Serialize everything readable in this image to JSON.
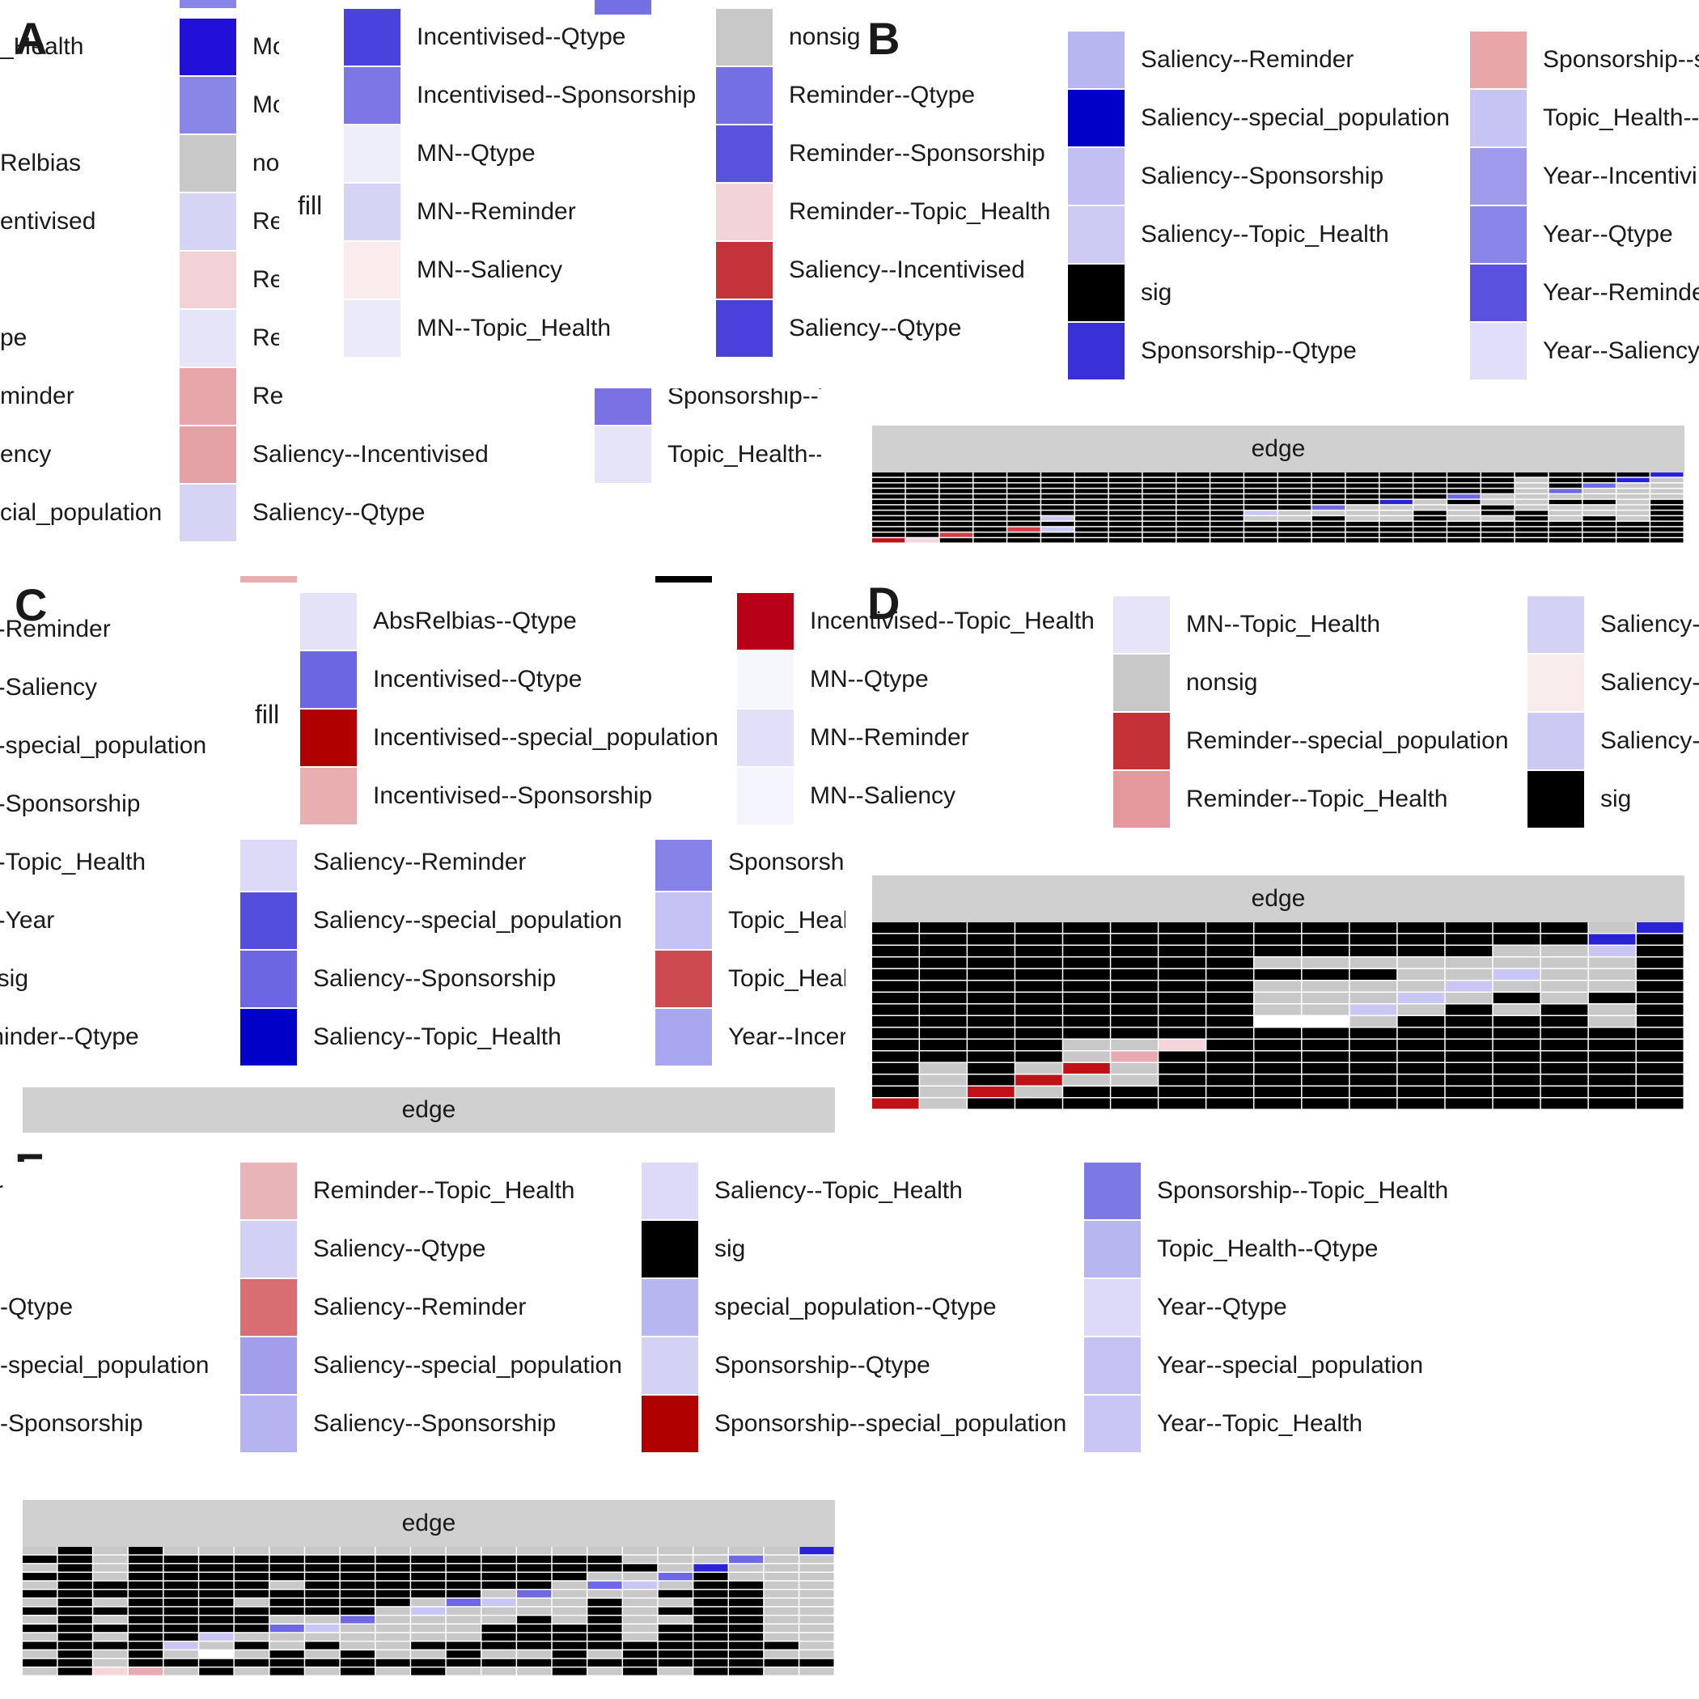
{
  "panels": [
    {
      "letter": "A",
      "fill_title": "fill"
    },
    {
      "letter": "B",
      "strip_label": "edge"
    },
    {
      "letter": "C",
      "fill_title": "fill",
      "strip_label": "edge"
    },
    {
      "letter": "D",
      "strip_label": "edge"
    },
    {
      "letter": "E",
      "strip_label": "edge"
    }
  ],
  "colors": {
    "sig": "#000000",
    "nonsig": "#c8c8c8",
    "strip": "#d0d0d0",
    "blue_strong": "#0000c8",
    "red_strong": "#b40000"
  },
  "legend_a_background": [
    {
      "label": "Topic_Health",
      "visible_text": "_Health",
      "color": "#ffffff"
    },
    {
      "label": "Relbias",
      "visible_text": "Relbias",
      "color": "#ffffff"
    },
    {
      "label": "Incentivised",
      "visible_text": "entivised",
      "color": "#ffffff"
    },
    {
      "label": "Qtype",
      "visible_text": "pe",
      "color": "#ffffff"
    },
    {
      "label": "Reminder",
      "visible_text": "minder",
      "color": "#ffffff"
    },
    {
      "label": "Saliency",
      "visible_text": "ency",
      "color": "#ffffff"
    },
    {
      "label": "special_population",
      "visible_text": "cial_population",
      "color": "#ffffff"
    },
    {
      "label": "Mo",
      "color": "#2010d8"
    },
    {
      "label": "Mo",
      "color": "#8a86e8"
    },
    {
      "label": "nor",
      "color": "#c8c8c8"
    },
    {
      "label": "Re",
      "color": "#d6d4f4"
    },
    {
      "label": "Re",
      "color": "#f2d2d6"
    },
    {
      "label": "Re",
      "color": "#e6e4f8"
    },
    {
      "label": "Re",
      "color": "#e6a6aa"
    },
    {
      "label": "Saliency--Incentivised",
      "color": "#e4a2a6"
    },
    {
      "label": "Saliency--Qtype",
      "color": "#d6d4f4"
    },
    {
      "label": "Sponsorship--Top",
      "color": "#7a72e4"
    },
    {
      "label": "Topic_Health--Qt",
      "color": "#e6e4f8"
    }
  ],
  "legend_a": [
    {
      "label": "Incentivised--Qtype",
      "color": "#4a42dc"
    },
    {
      "label": "Incentivised--Sponsorship",
      "color": "#7c76e6"
    },
    {
      "label": "MN--Qtype",
      "color": "#eeedfa"
    },
    {
      "label": "MN--Reminder",
      "color": "#d6d4f4"
    },
    {
      "label": "MN--Saliency",
      "color": "#faeced"
    },
    {
      "label": "MN--Topic_Health",
      "color": "#ebeaf9"
    },
    {
      "label": "nonsig",
      "color": "#c8c8c8"
    },
    {
      "label": "Reminder--Qtype",
      "color": "#7470e4"
    },
    {
      "label": "Reminder--Sponsorship",
      "color": "#5852de"
    },
    {
      "label": "Reminder--Topic_Health",
      "color": "#f2d4d8"
    },
    {
      "label": "Saliency--Incentivised",
      "color": "#c4323a"
    },
    {
      "label": "Saliency--Qtype",
      "color": "#4a40dc"
    }
  ],
  "legend_b": [
    {
      "label": "Saliency--Reminder",
      "color": "#b8b6f0"
    },
    {
      "label": "Saliency--special_population",
      "color": "#0000c8"
    },
    {
      "label": "Saliency--Sponsorship",
      "color": "#c2c0f2"
    },
    {
      "label": "Saliency--Topic_Health",
      "color": "#cdcbf4"
    },
    {
      "label": "sig",
      "color": "#000000"
    },
    {
      "label": "Sponsorship--Qtype",
      "color": "#3a30d8"
    },
    {
      "label": "Sponsorship--special_population",
      "visible_text": "Sponsorship--s",
      "color": "#e8a6a8"
    },
    {
      "label": "Topic_Health--",
      "color": "#c6c4f2"
    },
    {
      "label": "Year--Incentivi",
      "color": "#9e9aec"
    },
    {
      "label": "Year--Qtype",
      "color": "#8884e8"
    },
    {
      "label": "Year--Reminder",
      "visible_text": "Year--Reminde",
      "color": "#5a52de"
    },
    {
      "label": "Year--Saliency",
      "color": "#e0def8"
    }
  ],
  "legend_c_background": [
    {
      "label": "l--Reminder",
      "color": "#ffffff"
    },
    {
      "label": "l--Saliency",
      "color": "#ffffff"
    },
    {
      "label": "l--special_population",
      "color": "#ffffff"
    },
    {
      "label": "l--Sponsorship",
      "color": "#ffffff"
    },
    {
      "label": "l--Topic_Health",
      "color": "#ffffff"
    },
    {
      "label": "l--Year",
      "color": "#ffffff"
    },
    {
      "label": "nsig",
      "color": "#ffffff"
    },
    {
      "label": "minder--Qtype",
      "color": "#ffffff"
    },
    {
      "label": "Saliency--Reminder",
      "color": "#dcdaf6"
    },
    {
      "label": "Saliency--special_population",
      "color": "#544ede"
    },
    {
      "label": "Saliency--Sponsorship",
      "color": "#6c66e2"
    },
    {
      "label": "Saliency--Topic_Health",
      "color": "#0000c8"
    },
    {
      "label": "Sponsorsh",
      "color": "#8682e8"
    },
    {
      "label": "Topic_Heal",
      "color": "#c4c2f2"
    },
    {
      "label": "Topic_Heal",
      "color": "#cc4a50"
    },
    {
      "label": "Year--Incer",
      "color": "#a8a6ee"
    }
  ],
  "legend_c": [
    {
      "label": "AbsRelbias--Qtype",
      "color": "#e4e2f8"
    },
    {
      "label": "Incentivised--Qtype",
      "color": "#6c66e2"
    },
    {
      "label": "Incentivised--special_population",
      "color": "#b00000"
    },
    {
      "label": "Incentivised--Sponsorship",
      "color": "#e8aeb0"
    },
    {
      "label": "Incentivised--Topic_Health",
      "color": "#b80018"
    },
    {
      "label": "MN--Qtype",
      "color": "#f6f6fd"
    },
    {
      "label": "MN--Reminder",
      "color": "#e2e0f8"
    },
    {
      "label": "MN--Saliency",
      "color": "#f4f4fd"
    }
  ],
  "legend_d": [
    {
      "label": "MN--Topic_Health",
      "color": "#e6e4f9"
    },
    {
      "label": "nonsig",
      "color": "#c8c8c8"
    },
    {
      "label": "Reminder--special_population",
      "color": "#c43238"
    },
    {
      "label": "Reminder--Topic_Health",
      "color": "#e4989c"
    },
    {
      "label": "Saliency-",
      "color": "#d4d2f4"
    },
    {
      "label": "Saliency-",
      "color": "#f8ecec"
    },
    {
      "label": "Saliency-",
      "color": "#cccaf4"
    },
    {
      "label": "sig",
      "color": "#000000"
    }
  ],
  "legend_e_background": [
    {
      "label": "r",
      "color": "#ffffff"
    },
    {
      "label": "r--Qtype",
      "color": "#ffffff"
    },
    {
      "label": "r--special_population",
      "color": "#ffffff"
    },
    {
      "label": "r--Sponsorship",
      "color": "#ffffff"
    }
  ],
  "legend_e": [
    {
      "label": "Reminder--Topic_Health",
      "color": "#e8b4b8"
    },
    {
      "label": "Saliency--Qtype",
      "color": "#d2d0f4"
    },
    {
      "label": "Saliency--Reminder",
      "color": "#d86e72"
    },
    {
      "label": "Saliency--special_population",
      "color": "#a29eec"
    },
    {
      "label": "Saliency--Sponsorship",
      "color": "#b6b4f0"
    },
    {
      "label": "Saliency--Topic_Health",
      "color": "#dcdaf8"
    },
    {
      "label": "sig",
      "color": "#000000"
    },
    {
      "label": "special_population--Qtype",
      "color": "#b8b6f0"
    },
    {
      "label": "Sponsorship--Qtype",
      "color": "#d4d2f4"
    },
    {
      "label": "Sponsorship--special_population",
      "color": "#b00000"
    },
    {
      "label": "Sponsorship--Topic_Health",
      "color": "#7c78e6"
    },
    {
      "label": "Topic_Health--Qtype",
      "color": "#b8b6f0"
    },
    {
      "label": "Year--Qtype",
      "color": "#dcdaf8"
    },
    {
      "label": "Year--special_population",
      "color": "#c4c2f2"
    },
    {
      "label": "Year--Topic_Health",
      "color": "#c8c6f4"
    }
  ],
  "chart_data": [
    {
      "type": "heatmap",
      "panel": "B",
      "title": "edge",
      "columns": 24,
      "rows": 13,
      "cells": [
        "SSSSSSSSSSSSSSSSSSSSSSSB",
        "SSSSSSSSSSSSSSSSSSSNSSBN",
        "SSSSSSSSSSSSSSSSSSSNSbNN",
        "SSSSSSSSSSSSSSSSSSSNbNNN",
        "SSSSSSSSSSSSSSSSSbNNNNNN",
        "SSSSSSSSSSSSSSSBNSNNSSNS",
        "SSSSSSSSSSSSSbNNNNSNNNNS",
        "SSSSSSSSSSSlNNNNSNSSNNNS",
        "SSSSSlSSSSSNNSNNSNNSNSNS",
        "SSSSSSSSSSSSSSSSSSSSSSSS",
        "SSSSrlSSSSSSSSSSSSSSSSSS",
        "SSrSSSSSSSSSSSSSSSSSSSSS",
        "RpSSSSSSSSSSSSSSSSSSSSSS"
      ],
      "legend": "legend_a + legend_b"
    },
    {
      "type": "heatmap",
      "panel": "D",
      "title": "edge",
      "columns": 17,
      "rows": 16,
      "cells": [
        "SSSSSSSSSSSSSSSNB",
        "SSSSSSSSSSSSSSSBS",
        "SSSSSSSSSSSSSNNlS",
        "SSSSSSSSNNNNNNNNS",
        "SSSSSSSSSSSNNlNNS",
        "SSSSSSSSNNNNlNNNS",
        "SSSSSSSSNNNlNSNSS",
        "SSSSSSSSNNlNSNSNS",
        "SSSSSSSSWWNSSSSNS",
        "SSSSSSSSSSSSSSSSS",
        "SSSSNNpSSSSSSSSSS",
        "SSSSNPSSSSSSSSSSS",
        "SNSNRNSSSSSSSSSSS",
        "SNSRNNSSSSSSSSSSS",
        "SNRNSSSSSSSSSSSSS",
        "RNSSSSSSSSSSSSSSS"
      ],
      "legend": "legend_c + legend_d"
    },
    {
      "type": "heatmap",
      "panel": "E",
      "title": "edge",
      "columns": 23,
      "rows": 15,
      "cells": [
        "NSNSNNNNNNNNNNNNNNNNNNB",
        "SSNSSSSSSSSSSSSSSNNNbNN",
        "NSNSSSSSSSSSSSSSSSNBNNN",
        "SSNSSSSSSSSSSSSSNNbSNNN",
        "NSSSSSSNSSSSSSSNblNSSNN",
        "SSSSSSSSSSSSSNbNNNSSSNN",
        "NSNSSSNSSSSNblNNSNNSSNN",
        "SSSSSSSSSSNlNNNNSNSSSNN",
        "NSNSSSSNNbNNNNSNSNNSSNN",
        "SSSSSSSblNNNNSSSSNSSSNN",
        "NSNSSlNNNNNNNSSSSNSSSNN",
        "SSSSlNSNSNNSSSSSSSSSSSN",
        "NSNSNWNSNSNNSNNSNSSSSNN",
        "SSNSSSSSSSSSSSSSSSSSSSS",
        "NSpPNSNSNSNSNNNSNSNSSNN"
      ],
      "legend": "legend_e"
    }
  ]
}
